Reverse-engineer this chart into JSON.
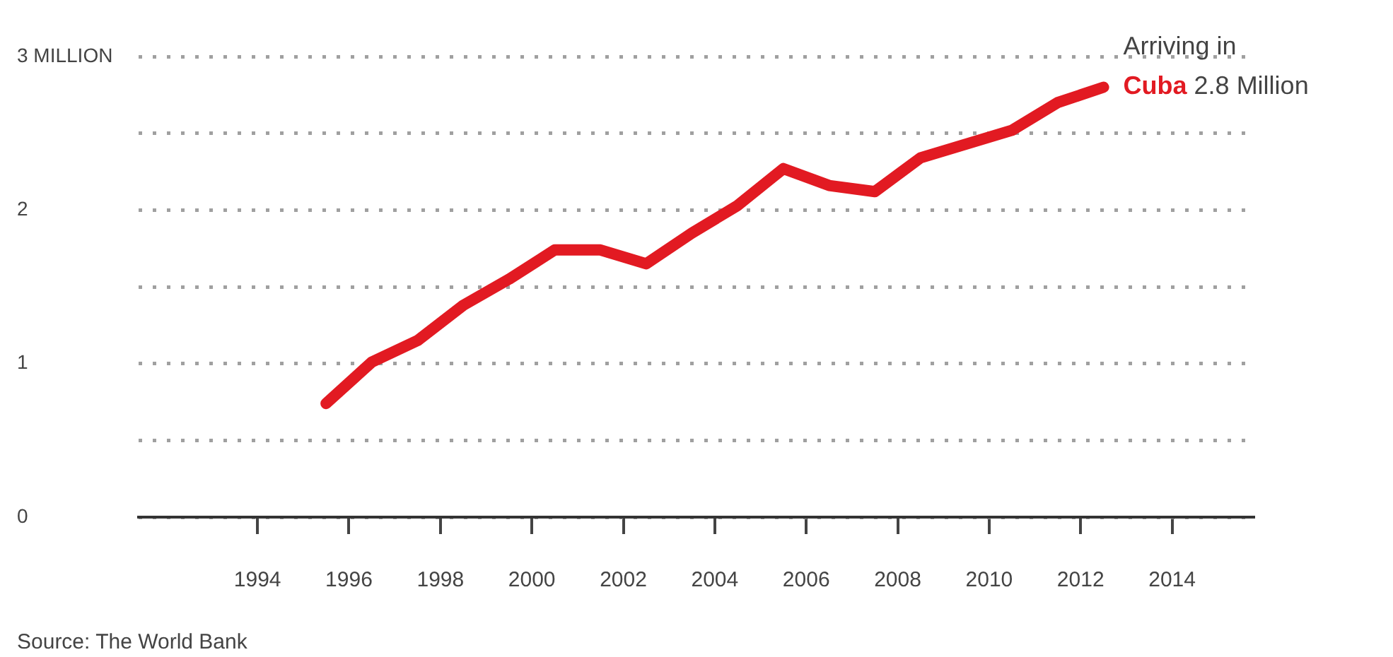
{
  "chart_data": {
    "type": "line",
    "x": [
      1995.5,
      1996.5,
      1997.5,
      1998.5,
      1999.5,
      2000.5,
      2001.5,
      2002.5,
      2003.5,
      2004.5,
      2005.5,
      2006.5,
      2007.5,
      2008.5,
      2009.5,
      2010.5,
      2011.5,
      2012.5
    ],
    "series": [
      {
        "name": "Cuba",
        "color": "#e21a22",
        "values": [
          0.74,
          1.01,
          1.15,
          1.38,
          1.55,
          1.74,
          1.74,
          1.65,
          1.85,
          2.03,
          2.27,
          2.16,
          2.12,
          2.34,
          2.43,
          2.52,
          2.7,
          2.8
        ]
      }
    ],
    "xlim": [
      1991.4,
      2015.8
    ],
    "xticks": [
      1994,
      1996,
      1998,
      2000,
      2002,
      2004,
      2006,
      2008,
      2010,
      2012,
      2014
    ],
    "ylim": [
      0,
      3
    ],
    "yticks": [
      0,
      {
        "value": 0.5,
        "label": null
      },
      1,
      {
        "value": 1.5,
        "label": null
      },
      2,
      {
        "value": 2.5,
        "label": null
      },
      {
        "value": 3,
        "label": "3 MILLION"
      }
    ],
    "grid": "y",
    "annotations": [
      {
        "text": "Arriving in",
        "x": 2012.5,
        "y": 2.8
      },
      "2.8 Million",
      "Source: The World Bank"
    ]
  }
}
